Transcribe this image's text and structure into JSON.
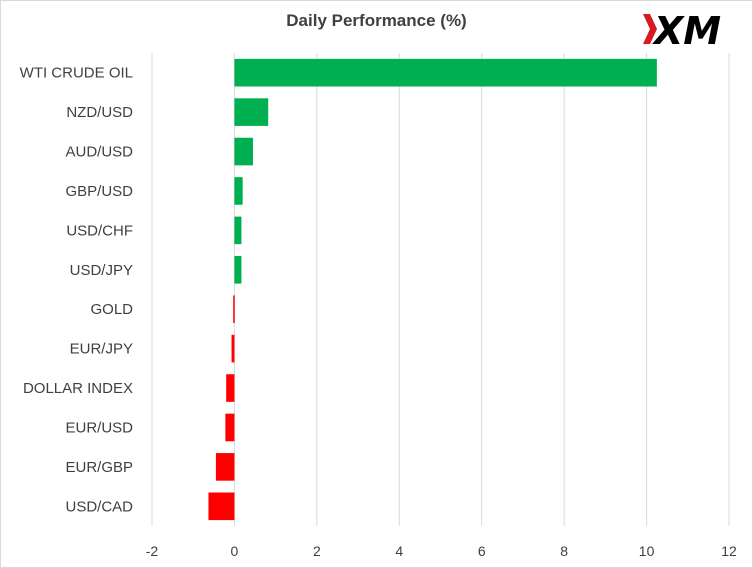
{
  "chart_data": {
    "type": "bar",
    "orientation": "horizontal",
    "title": "Daily Performance  (%)",
    "categories": [
      "WTI CRUDE OIL",
      "NZD/USD",
      "AUD/USD",
      "GBP/USD",
      "USD/CHF",
      "USD/JPY",
      "GOLD",
      "EUR/JPY",
      "DOLLAR INDEX",
      "EUR/USD",
      "EUR/GBP",
      "USD/CAD"
    ],
    "values": [
      10.25,
      0.82,
      0.45,
      0.2,
      0.17,
      0.17,
      -0.03,
      -0.07,
      -0.2,
      -0.22,
      -0.45,
      -0.63
    ],
    "xlim": [
      -2,
      12
    ],
    "xticks": [
      -2,
      0,
      2,
      4,
      6,
      8,
      10,
      12
    ],
    "xlabel": "",
    "ylabel": "",
    "grid": "vertical",
    "legend": "none",
    "positive_color": "#00b050",
    "negative_color": "#ff0000"
  },
  "logo": {
    "text": "XM",
    "colors": {
      "mark": "#d71920",
      "text": "#000000"
    }
  }
}
